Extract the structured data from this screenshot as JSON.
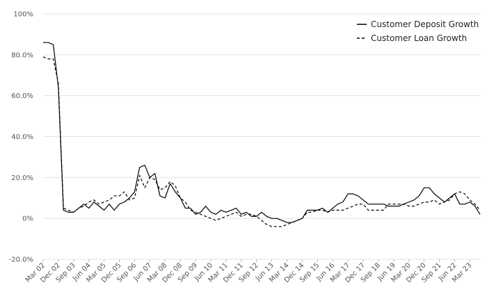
{
  "chart_data": {
    "type": "line",
    "title": "",
    "xlabel": "",
    "ylabel": "",
    "ylim": [
      -20,
      100
    ],
    "yticks": [
      "-20.0%",
      "0%",
      "20.0%",
      "40.0%",
      "60.0%",
      "80.0%",
      "100%"
    ],
    "ytick_values": [
      -20,
      0,
      20,
      40,
      60,
      80,
      100
    ],
    "xticks": [
      "Mar 02",
      "Dec 02",
      "Sep 03",
      "Jun 04",
      "Mar 05",
      "Dec 05",
      "Sep 06",
      "Jun 07",
      "Mar 08",
      "Dec 08",
      "Sep 09",
      "Jun 10",
      "Mar 11",
      "Dec 11",
      "Sep 12",
      "Jun 13",
      "Mar 14",
      "Dec 14",
      "Sep 15",
      "Jun 16",
      "Mar 17",
      "Dec 17",
      "Sep 18",
      "Jun 19",
      "Mar 20",
      "Dec 20",
      "Sep 21",
      "Jun 22",
      "Mar 23"
    ],
    "x_start_quarter": 0,
    "x_count": 87,
    "grid": "horizontal",
    "legend_position": "top-right",
    "series": [
      {
        "name": "Customer Deposit Growth",
        "style": "solid",
        "color": "#000000",
        "values": [
          86,
          86,
          85,
          64,
          4,
          3,
          3,
          5,
          7,
          5,
          8,
          6,
          4,
          7,
          4,
          7,
          8,
          10,
          13,
          25,
          26,
          20,
          22,
          11,
          10,
          17,
          13,
          10,
          5,
          5,
          2,
          3,
          6,
          3,
          2,
          4,
          3,
          4,
          5,
          2,
          3,
          1,
          1,
          3,
          1,
          0,
          0,
          -1,
          -2,
          -2,
          -1,
          0,
          4,
          4,
          4,
          5,
          3,
          5,
          7,
          8,
          12,
          12,
          11,
          9,
          7,
          7,
          7,
          7,
          6,
          6,
          6,
          7,
          8,
          9,
          11,
          15,
          15,
          12,
          10,
          8,
          10,
          12,
          7,
          7,
          8,
          6,
          2
        ]
      },
      {
        "name": "Customer Loan Growth",
        "style": "dashed",
        "color": "#000000",
        "values": [
          79,
          78,
          78,
          66,
          5,
          4,
          3,
          5,
          6,
          8,
          9,
          7,
          8,
          9,
          11,
          11,
          13,
          9,
          10,
          21,
          15,
          20,
          19,
          14,
          15,
          18,
          16,
          10,
          8,
          4,
          3,
          2,
          1,
          0,
          -1,
          0,
          1,
          2,
          3,
          1,
          2,
          2,
          1,
          -1,
          -3,
          -4,
          -4,
          -4,
          -3,
          -2,
          -1,
          0,
          3,
          3,
          4,
          4,
          3,
          4,
          4,
          4,
          5,
          6,
          7,
          7,
          4,
          4,
          4,
          4,
          7,
          7,
          7,
          7,
          6,
          6,
          7,
          8,
          8,
          9,
          7,
          8,
          9,
          12,
          13,
          12,
          9,
          7,
          4
        ]
      }
    ]
  }
}
